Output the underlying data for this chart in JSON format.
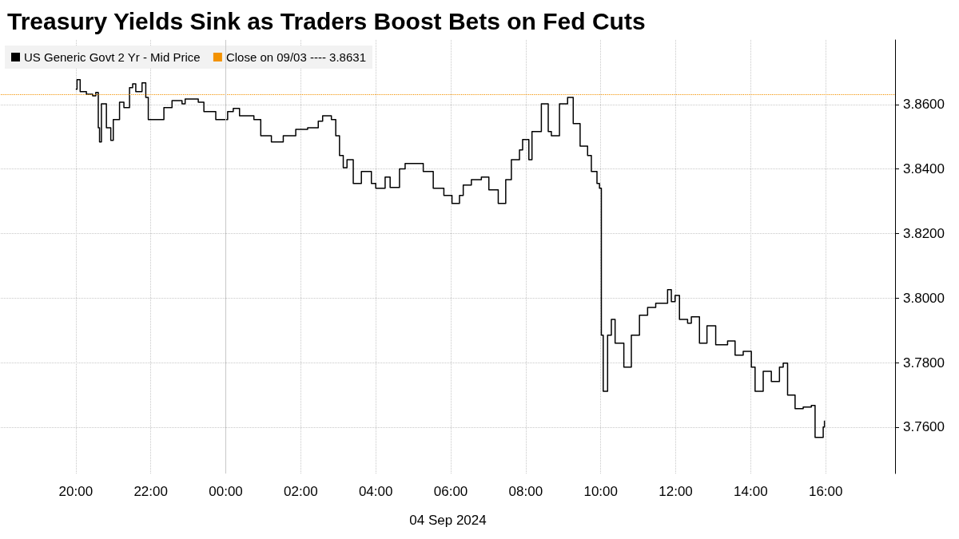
{
  "chart_data": {
    "type": "step",
    "title": "Treasury Yields Sink as Traders Boost Bets on Fed Cuts",
    "xlabel": "04 Sep 2024",
    "x": [
      "2024-09-03T20:00",
      "2024-09-03T20:02",
      "2024-09-03T20:07",
      "2024-09-03T20:17",
      "2024-09-03T20:27",
      "2024-09-03T20:32",
      "2024-09-03T20:36",
      "2024-09-03T20:38",
      "2024-09-03T20:41",
      "2024-09-03T20:49",
      "2024-09-03T20:56",
      "2024-09-03T21:00",
      "2024-09-03T21:10",
      "2024-09-03T21:17",
      "2024-09-03T21:26",
      "2024-09-03T21:31",
      "2024-09-03T21:36",
      "2024-09-03T21:46",
      "2024-09-03T21:52",
      "2024-09-03T21:56",
      "2024-09-03T22:08",
      "2024-09-03T22:21",
      "2024-09-03T22:34",
      "2024-09-03T22:50",
      "2024-09-03T22:55",
      "2024-09-03T23:16",
      "2024-09-03T23:25",
      "2024-09-03T23:44",
      "2024-09-04T00:03",
      "2024-09-04T00:12",
      "2024-09-04T00:22",
      "2024-09-04T00:45",
      "2024-09-04T00:56",
      "2024-09-04T01:13",
      "2024-09-04T01:32",
      "2024-09-04T01:52",
      "2024-09-04T02:11",
      "2024-09-04T02:28",
      "2024-09-04T02:35",
      "2024-09-04T02:49",
      "2024-09-04T02:56",
      "2024-09-04T03:02",
      "2024-09-04T03:08",
      "2024-09-04T03:14",
      "2024-09-04T03:24",
      "2024-09-04T03:37",
      "2024-09-04T03:53",
      "2024-09-04T04:00",
      "2024-09-04T04:15",
      "2024-09-04T04:23",
      "2024-09-04T04:38",
      "2024-09-04T04:47",
      "2024-09-04T05:01",
      "2024-09-04T05:16",
      "2024-09-04T05:32",
      "2024-09-04T05:49",
      "2024-09-04T06:02",
      "2024-09-04T06:14",
      "2024-09-04T06:20",
      "2024-09-04T06:33",
      "2024-09-04T06:49",
      "2024-09-04T07:01",
      "2024-09-04T07:16",
      "2024-09-04T07:28",
      "2024-09-04T07:37",
      "2024-09-04T07:50",
      "2024-09-04T07:55",
      "2024-09-04T08:05",
      "2024-09-04T08:10",
      "2024-09-04T08:25",
      "2024-09-04T08:36",
      "2024-09-04T08:41",
      "2024-09-04T08:54",
      "2024-09-04T09:07",
      "2024-09-04T09:16",
      "2024-09-04T09:27",
      "2024-09-04T09:39",
      "2024-09-04T09:45",
      "2024-09-04T09:54",
      "2024-09-04T09:58",
      "2024-09-04T10:01",
      "2024-09-04T10:04",
      "2024-09-04T10:11",
      "2024-09-04T10:17",
      "2024-09-04T10:23",
      "2024-09-04T10:37",
      "2024-09-04T10:49",
      "2024-09-04T11:02",
      "2024-09-04T11:15",
      "2024-09-04T11:28",
      "2024-09-04T11:47",
      "2024-09-04T11:53",
      "2024-09-04T11:59",
      "2024-09-04T12:06",
      "2024-09-04T12:19",
      "2024-09-04T12:25",
      "2024-09-04T12:38",
      "2024-09-04T12:50",
      "2024-09-04T13:04",
      "2024-09-04T13:23",
      "2024-09-04T13:35",
      "2024-09-04T13:48",
      "2024-09-04T14:01",
      "2024-09-04T14:07",
      "2024-09-04T14:20",
      "2024-09-04T14:33",
      "2024-09-04T14:46",
      "2024-09-04T14:52",
      "2024-09-04T14:59",
      "2024-09-04T15:11",
      "2024-09-04T15:24",
      "2024-09-04T15:37",
      "2024-09-04T15:43",
      "2024-09-04T15:56",
      "2024-09-04T15:58"
    ],
    "series": [
      {
        "name": "US Generic Govt 2 Yr - Mid Price",
        "color": "#000000",
        "values": [
          3.8647,
          3.8677,
          3.864,
          3.8632,
          3.8627,
          3.8637,
          3.8528,
          3.8484,
          3.8602,
          3.8528,
          3.8489,
          3.8553,
          3.8607,
          3.859,
          3.8652,
          3.8664,
          3.864,
          3.8667,
          3.8622,
          3.8553,
          3.8553,
          3.859,
          3.8612,
          3.8602,
          3.8617,
          3.8607,
          3.8578,
          3.8553,
          3.8578,
          3.8588,
          3.8565,
          3.8553,
          3.8503,
          3.8484,
          3.8503,
          3.8523,
          3.8528,
          3.8548,
          3.8565,
          3.8553,
          3.8503,
          3.8442,
          3.8404,
          3.8429,
          3.8355,
          3.8392,
          3.8355,
          3.834,
          3.8375,
          3.8343,
          3.84,
          3.8417,
          3.8417,
          3.8392,
          3.834,
          3.8318,
          3.8293,
          3.8318,
          3.835,
          3.8367,
          3.8375,
          3.8335,
          3.8293,
          3.8367,
          3.8429,
          3.8459,
          3.8491,
          3.8429,
          3.8516,
          3.8602,
          3.8516,
          3.8503,
          3.8602,
          3.8622,
          3.8541,
          3.8471,
          3.8442,
          3.8392,
          3.8355,
          3.834,
          3.7885,
          3.7711,
          3.7885,
          3.7934,
          3.786,
          3.7786,
          3.7885,
          3.7947,
          3.7971,
          3.7984,
          3.8026,
          3.7989,
          3.8008,
          3.7934,
          3.7922,
          3.7942,
          3.786,
          3.7914,
          3.7855,
          3.7867,
          3.7823,
          3.7835,
          3.7786,
          3.7711,
          3.7773,
          3.7741,
          3.7786,
          3.7798,
          3.7699,
          3.7657,
          3.7662,
          3.7667,
          3.7568,
          3.76,
          3.762
        ]
      }
    ],
    "xlim": [
      "2024-09-03T18:00",
      "2024-09-04T17:51"
    ],
    "xticks": [
      {
        "value": "2024-09-03T20:00",
        "label": "20:00"
      },
      {
        "value": "2024-09-03T22:00",
        "label": "22:00"
      },
      {
        "value": "2024-09-04T00:00",
        "label": "00:00"
      },
      {
        "value": "2024-09-04T02:00",
        "label": "02:00"
      },
      {
        "value": "2024-09-04T04:00",
        "label": "04:00"
      },
      {
        "value": "2024-09-04T06:00",
        "label": "06:00"
      },
      {
        "value": "2024-09-04T08:00",
        "label": "08:00"
      },
      {
        "value": "2024-09-04T10:00",
        "label": "10:00"
      },
      {
        "value": "2024-09-04T12:00",
        "label": "12:00"
      },
      {
        "value": "2024-09-04T14:00",
        "label": "14:00"
      },
      {
        "value": "2024-09-04T16:00",
        "label": "16:00"
      }
    ],
    "ylim": [
      3.7456,
      3.88
    ],
    "yticks": [
      {
        "value": 3.76,
        "label": "3.7600"
      },
      {
        "value": 3.78,
        "label": "3.7800"
      },
      {
        "value": 3.8,
        "label": "3.8000"
      },
      {
        "value": 3.82,
        "label": "3.8200"
      },
      {
        "value": 3.84,
        "label": "3.8400"
      },
      {
        "value": 3.86,
        "label": "3.8600"
      }
    ],
    "ref_lines": [
      {
        "axis": "y",
        "value": 3.8631,
        "label": "Close on 09/03 ---- 3.8631",
        "color": "#f39200",
        "line_style": "dotted"
      },
      {
        "axis": "x",
        "value": "2024-09-04T00:00",
        "label": null,
        "color": "#c8c8c8",
        "line_style": "solid"
      }
    ],
    "grid": true,
    "legend": "top left",
    "marker": "none",
    "line_style": "solid"
  }
}
